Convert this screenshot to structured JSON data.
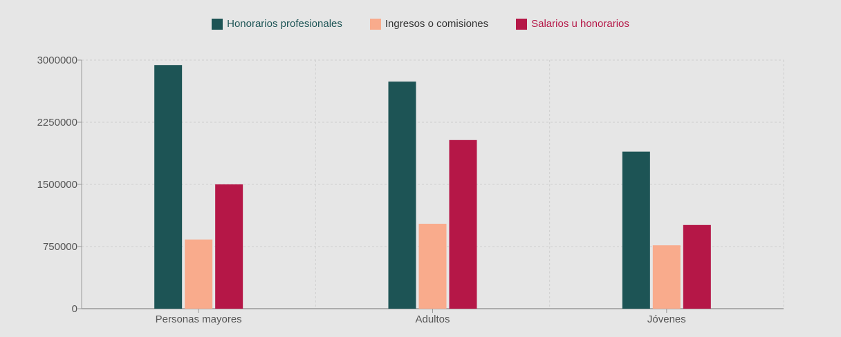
{
  "chart_data": {
    "type": "bar",
    "title": "",
    "xlabel": "",
    "ylabel": "",
    "categories": [
      "Personas mayores",
      "Adultos",
      "Jóvenes"
    ],
    "series": [
      {
        "name": "Honorarios profesionales",
        "color": "#1d5455",
        "values": [
          2940000,
          2740000,
          1895000
        ]
      },
      {
        "name": "Ingresos o comisiones",
        "color": "#f9ab8c",
        "values": [
          835000,
          1025000,
          765000
        ]
      },
      {
        "name": "Salarios u honorarios",
        "color": "#b51747",
        "values": [
          1500000,
          2035000,
          1010000
        ]
      }
    ],
    "ylim": [
      0,
      3000000
    ],
    "yticks": [
      0,
      750000,
      1500000,
      2250000,
      3000000
    ],
    "ytick_labels": [
      "0",
      "750000",
      "1500000",
      "2250000",
      "3000000"
    ],
    "grid": true,
    "legend_position": "top-center"
  }
}
